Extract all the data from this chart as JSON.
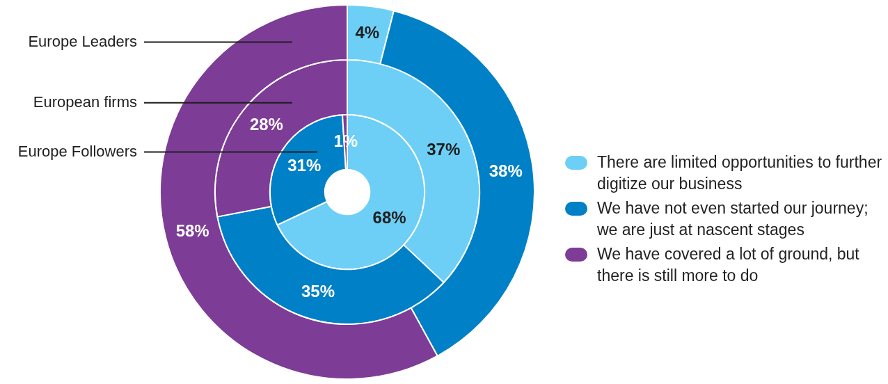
{
  "chart_data": {
    "type": "donut",
    "categories": [
      "There are limited opportunities to further digitize our business",
      "We have not even started our journey; we are just at nascent stages",
      "We have covered a lot of ground, but there is still more to do"
    ],
    "colors": [
      "#6dcff6",
      "#0080c6",
      "#7d3c96"
    ],
    "series": [
      {
        "name": "Europe Leaders",
        "values": [
          4,
          38,
          58
        ],
        "value_labels": [
          "4%",
          "38%",
          "58%"
        ]
      },
      {
        "name": "European firms",
        "values": [
          37,
          35,
          28
        ],
        "value_labels": [
          "37%",
          "35%",
          "28%"
        ]
      },
      {
        "name": "Europe Followers",
        "values": [
          68,
          31,
          1
        ],
        "value_labels": [
          "68%",
          "31%",
          "1%"
        ]
      }
    ],
    "legend": "right"
  }
}
